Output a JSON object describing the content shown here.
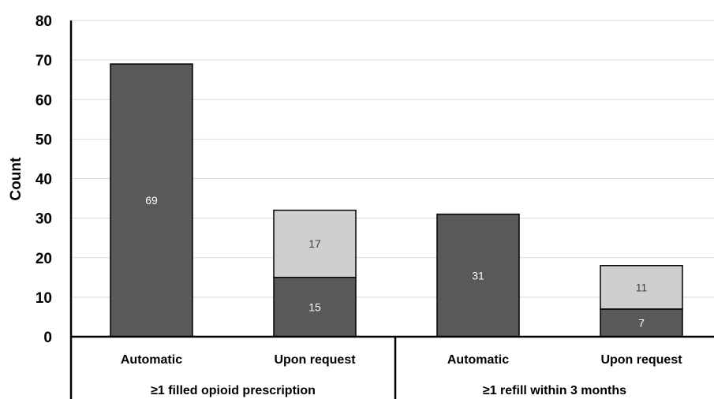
{
  "chart_data": {
    "type": "bar",
    "stacked": true,
    "ylabel": "Count",
    "ylim": [
      0,
      80
    ],
    "yticks": [
      0,
      10,
      20,
      30,
      40,
      50,
      60,
      70,
      80
    ],
    "grid": true,
    "groups": [
      {
        "label": "≥1 filled opioid prescription",
        "categories": [
          {
            "label": "Automatic",
            "segments": [
              69
            ]
          },
          {
            "label": "Upon request",
            "segments": [
              15,
              17
            ]
          }
        ]
      },
      {
        "label": "≥1 refill within 3 months",
        "categories": [
          {
            "label": "Automatic",
            "segments": [
              31
            ]
          },
          {
            "label": "Upon request",
            "segments": [
              7,
              11
            ]
          }
        ]
      }
    ],
    "segment_colors": [
      "#595959",
      "#d0cece"
    ],
    "segment_label_colors": [
      "#ffffff",
      "#404040"
    ]
  }
}
